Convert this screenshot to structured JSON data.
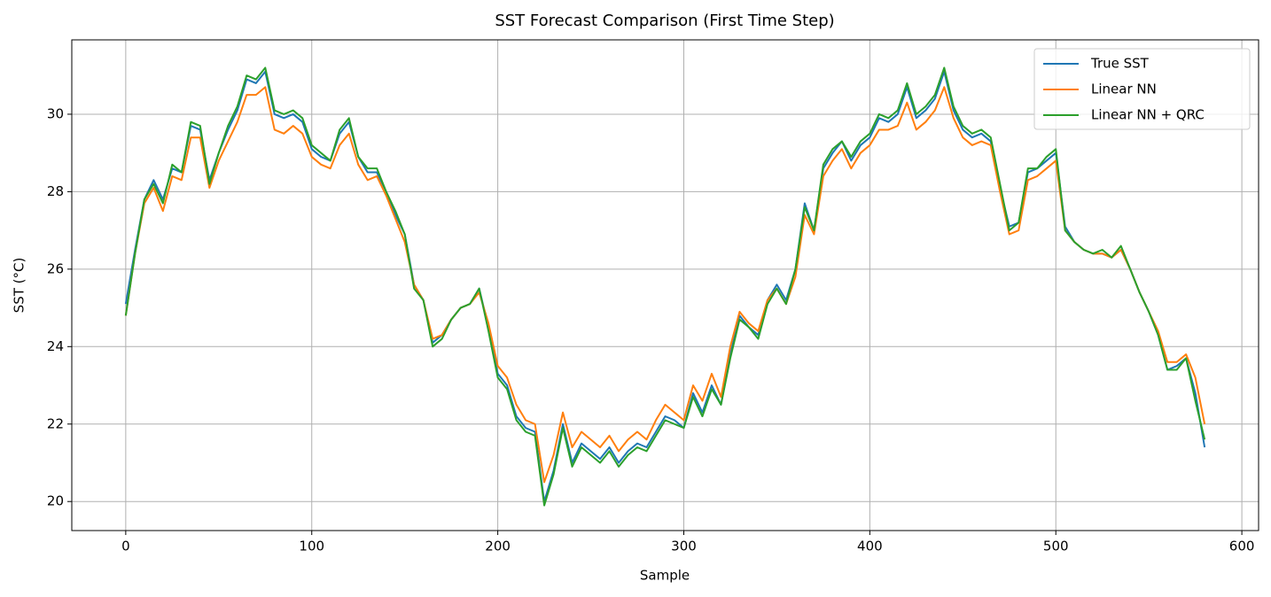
{
  "chart_data": {
    "type": "line",
    "title": "SST Forecast Comparison (First Time Step)",
    "xlabel": "Sample",
    "ylabel": "SST (°C)",
    "x": [
      0,
      5,
      10,
      15,
      20,
      25,
      30,
      35,
      40,
      45,
      50,
      55,
      60,
      65,
      70,
      75,
      80,
      85,
      90,
      95,
      100,
      105,
      110,
      115,
      120,
      125,
      130,
      135,
      140,
      145,
      150,
      155,
      160,
      165,
      170,
      175,
      180,
      185,
      190,
      195,
      200,
      205,
      210,
      215,
      220,
      225,
      230,
      235,
      240,
      245,
      250,
      255,
      260,
      265,
      270,
      275,
      280,
      285,
      290,
      295,
      300,
      305,
      310,
      315,
      320,
      325,
      330,
      335,
      340,
      345,
      350,
      355,
      360,
      365,
      370,
      375,
      380,
      385,
      390,
      395,
      400,
      405,
      410,
      415,
      420,
      425,
      430,
      435,
      440,
      445,
      450,
      455,
      460,
      465,
      470,
      475,
      480,
      485,
      490,
      495,
      500,
      505,
      510,
      515,
      520,
      525,
      530,
      535,
      540,
      545,
      550,
      555,
      560,
      565,
      570,
      575,
      580
    ],
    "series": [
      {
        "name": "True SST",
        "color": "#1f77b4",
        "values": [
          25.1,
          26.5,
          27.8,
          28.3,
          27.8,
          28.6,
          28.5,
          29.7,
          29.6,
          28.3,
          29.0,
          29.6,
          30.1,
          30.9,
          30.8,
          31.1,
          30.0,
          29.9,
          30.0,
          29.8,
          29.1,
          28.9,
          28.8,
          29.5,
          29.8,
          28.9,
          28.5,
          28.5,
          28.0,
          27.4,
          26.9,
          25.6,
          25.2,
          24.1,
          24.3,
          24.7,
          25.0,
          25.1,
          25.5,
          24.5,
          23.3,
          23.0,
          22.2,
          21.9,
          21.8,
          20.0,
          20.8,
          22.0,
          21.0,
          21.5,
          21.3,
          21.1,
          21.4,
          21.0,
          21.3,
          21.5,
          21.4,
          21.8,
          22.2,
          22.1,
          21.9,
          22.8,
          22.3,
          23.0,
          22.5,
          23.8,
          24.8,
          24.5,
          24.3,
          25.2,
          25.6,
          25.2,
          26.0,
          27.7,
          27.0,
          28.6,
          29.0,
          29.3,
          28.8,
          29.2,
          29.4,
          29.9,
          29.8,
          30.0,
          30.7,
          29.9,
          30.1,
          30.4,
          31.1,
          30.1,
          29.6,
          29.4,
          29.5,
          29.3,
          28.1,
          27.1,
          27.2,
          28.5,
          28.6,
          28.8,
          29.0,
          27.1,
          26.7,
          26.5,
          26.4,
          26.4,
          26.3,
          26.5,
          26.0,
          25.4,
          24.9,
          24.3,
          23.4,
          23.5,
          23.7,
          22.8,
          21.4
        ]
      },
      {
        "name": "Linear NN",
        "color": "#ff7f0e",
        "values": [
          24.8,
          26.4,
          27.7,
          28.1,
          27.5,
          28.4,
          28.3,
          29.4,
          29.4,
          28.1,
          28.8,
          29.3,
          29.8,
          30.5,
          30.5,
          30.7,
          29.6,
          29.5,
          29.7,
          29.5,
          28.9,
          28.7,
          28.6,
          29.2,
          29.5,
          28.7,
          28.3,
          28.4,
          27.9,
          27.3,
          26.7,
          25.6,
          25.2,
          24.2,
          24.3,
          24.7,
          25.0,
          25.1,
          25.4,
          24.6,
          23.5,
          23.2,
          22.5,
          22.1,
          22.0,
          20.5,
          21.2,
          22.3,
          21.4,
          21.8,
          21.6,
          21.4,
          21.7,
          21.3,
          21.6,
          21.8,
          21.6,
          22.1,
          22.5,
          22.3,
          22.1,
          23.0,
          22.6,
          23.3,
          22.7,
          24.0,
          24.9,
          24.6,
          24.4,
          25.2,
          25.5,
          25.1,
          25.8,
          27.4,
          26.9,
          28.4,
          28.8,
          29.1,
          28.6,
          29.0,
          29.2,
          29.6,
          29.6,
          29.7,
          30.3,
          29.6,
          29.8,
          30.1,
          30.7,
          29.9,
          29.4,
          29.2,
          29.3,
          29.2,
          28.0,
          26.9,
          27.0,
          28.3,
          28.4,
          28.6,
          28.8,
          27.0,
          26.7,
          26.5,
          26.4,
          26.4,
          26.3,
          26.5,
          26.0,
          25.4,
          24.9,
          24.4,
          23.6,
          23.6,
          23.8,
          23.2,
          22.0
        ]
      },
      {
        "name": "Linear NN + QRC",
        "color": "#2ca02c",
        "values": [
          24.8,
          26.4,
          27.8,
          28.2,
          27.7,
          28.7,
          28.5,
          29.8,
          29.7,
          28.2,
          29.0,
          29.7,
          30.2,
          31.0,
          30.9,
          31.2,
          30.1,
          30.0,
          30.1,
          29.9,
          29.2,
          29.0,
          28.8,
          29.6,
          29.9,
          28.9,
          28.6,
          28.6,
          28.0,
          27.5,
          26.9,
          25.5,
          25.2,
          24.0,
          24.2,
          24.7,
          25.0,
          25.1,
          25.5,
          24.4,
          23.2,
          22.9,
          22.1,
          21.8,
          21.7,
          19.9,
          20.7,
          21.9,
          20.9,
          21.4,
          21.2,
          21.0,
          21.3,
          20.9,
          21.2,
          21.4,
          21.3,
          21.7,
          22.1,
          22.0,
          21.9,
          22.7,
          22.2,
          22.9,
          22.5,
          23.7,
          24.7,
          24.5,
          24.2,
          25.1,
          25.5,
          25.1,
          26.0,
          27.6,
          27.0,
          28.7,
          29.1,
          29.3,
          28.9,
          29.3,
          29.5,
          30.0,
          29.9,
          30.1,
          30.8,
          30.0,
          30.2,
          30.5,
          31.2,
          30.2,
          29.7,
          29.5,
          29.6,
          29.4,
          28.2,
          27.0,
          27.2,
          28.6,
          28.6,
          28.9,
          29.1,
          27.0,
          26.7,
          26.5,
          26.4,
          26.5,
          26.3,
          26.6,
          26.0,
          25.4,
          24.9,
          24.3,
          23.4,
          23.4,
          23.7,
          22.6,
          21.6
        ]
      }
    ],
    "xlim": [
      -29,
      609
    ],
    "ylim": [
      19.25,
      31.92
    ],
    "xticks": [
      0,
      100,
      200,
      300,
      400,
      500,
      600
    ],
    "yticks": [
      20,
      22,
      24,
      26,
      28,
      30
    ],
    "grid": true,
    "legend": "upper right"
  }
}
